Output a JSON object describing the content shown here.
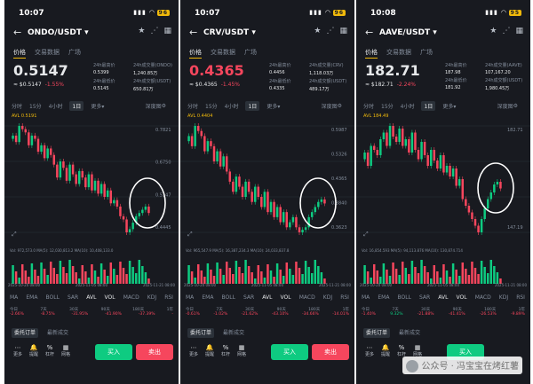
{
  "common": {
    "price_tabs": [
      "价格",
      "交易数据",
      "广场"
    ],
    "intervals": [
      "分时",
      "15分",
      "4小时",
      "1日",
      "更多▾",
      "深度图"
    ],
    "indicators": [
      "MA",
      "EMA",
      "BOLL",
      "SAR",
      "AVL",
      "VOL",
      "MACD",
      "KDJ",
      "RSI"
    ],
    "perf_labels": [
      "今日",
      "7天",
      "30天",
      "90天",
      "180天",
      "1年"
    ],
    "order_tabs": [
      "委托订单",
      "最新成交"
    ],
    "nav": [
      {
        "icon": "⋯",
        "label": "更多"
      },
      {
        "icon": "🔔",
        "label": "提醒"
      },
      {
        "icon": "%",
        "label": "杠杆"
      },
      {
        "icon": "▦",
        "label": "网格"
      }
    ],
    "buy_label": "买入",
    "sell_label": "卖出",
    "up_color": "#0ecb81",
    "down_color": "#f6465d",
    "accent": "#f0b90b"
  },
  "phones": [
    {
      "time": "10:07",
      "battery": "96",
      "pair": "ONDO/USDT",
      "price": "0.5147",
      "price_color": "#e6e8ea",
      "sub": "≈ $0.5147",
      "change": "-1.55%",
      "stats": [
        [
          "24h最高价",
          "24h成交量(ONDO)"
        ],
        [
          "0.5399",
          "1,240.85万"
        ],
        [
          "24h最低价",
          "24h成交额(USDT)"
        ],
        [
          "0.5145",
          "650.81万"
        ]
      ],
      "avl": "AVL 0.5191",
      "axis": [
        "0.7821",
        "0.6750",
        "0.5147",
        "0.4445"
      ],
      "vol": "Vol: 972,573.0    MA(5): 12,030,813.2    MA(10): 10,408,133.0",
      "dates": [
        "2025-10-20 08:00",
        "2025-11-05 08:00",
        "2025-11-21 08:00"
      ],
      "perf": [
        "-2.66%",
        "-8.75%",
        "-31.95%",
        "-41.90%",
        "-37.39%",
        "-"
      ],
      "series": [
        0.74,
        0.75,
        0.73,
        0.78,
        0.77,
        0.76,
        0.72,
        0.75,
        0.74,
        0.7,
        0.72,
        0.68,
        0.71,
        0.69,
        0.66,
        0.62,
        0.67,
        0.65,
        0.61,
        0.66,
        0.63,
        0.6,
        0.64,
        0.62,
        0.59,
        0.63,
        0.58,
        0.61,
        0.57,
        0.6,
        0.56,
        0.58,
        0.54,
        0.55,
        0.53,
        0.5,
        0.49,
        0.45,
        0.46,
        0.48,
        0.5,
        0.51,
        0.52,
        0.53,
        0.51
      ],
      "circle": [
        161,
        95
      ]
    },
    {
      "time": "10:07",
      "battery": "96",
      "pair": "CRV/USDT",
      "price": "0.4365",
      "price_color": "#f6465d",
      "sub": "≈ $0.4365",
      "change": "-1.45%",
      "stats": [
        [
          "24h最高价",
          "24h成交量(CRV)"
        ],
        [
          "0.4456",
          "1,118.03万"
        ],
        [
          "24h最低价",
          "24h成交额(USDT)"
        ],
        [
          "0.4335",
          "489.17万"
        ]
      ],
      "avl": "AVL 0.4404",
      "axis": [
        "0.5987",
        "0.5326",
        "0.4365",
        "0.3840",
        "0.3623"
      ],
      "vol": "Vol: 965,547.9    MA(5): 16,387,234.3    MA(10): 24,033,837.8",
      "dates": [
        "2025-10-20 08:00",
        "2025-11-05 08:00",
        "2025-11-21 08:00"
      ],
      "perf": [
        "-0.61%",
        "-1.02%",
        "-21.62%",
        "-43.10%",
        "-34.66%",
        "-14.01%"
      ],
      "series": [
        0.56,
        0.57,
        0.55,
        0.59,
        0.58,
        0.57,
        0.54,
        0.56,
        0.55,
        0.52,
        0.54,
        0.51,
        0.53,
        0.5,
        0.48,
        0.46,
        0.49,
        0.47,
        0.45,
        0.48,
        0.46,
        0.44,
        0.47,
        0.45,
        0.43,
        0.46,
        0.42,
        0.44,
        0.41,
        0.43,
        0.4,
        0.42,
        0.39,
        0.4,
        0.41,
        0.39,
        0.38,
        0.385,
        0.39,
        0.41,
        0.42,
        0.43,
        0.44,
        0.445,
        0.437
      ],
      "circle": [
        155,
        95
      ]
    },
    {
      "time": "10:08",
      "battery": "95",
      "pair": "AAVE/USDT",
      "price": "182.71",
      "price_color": "#e6e8ea",
      "sub": "≈ $182.71",
      "change": "-2.24%",
      "stats": [
        [
          "24h最高价",
          "24h成交量(AAVE)"
        ],
        [
          "187.98",
          "107,167.20"
        ],
        [
          "24h最低价",
          "24h成交额(USDT)"
        ],
        [
          "181.92",
          "1,980.45万"
        ]
      ],
      "avl": "AVL 184.49",
      "axis": [
        "182.71",
        "147.19"
      ],
      "vol": "Vol: 16,854.593    MA(5): 94,113.876    MA(10): 130,874.714",
      "dates": [
        "2025-10-20 08:00",
        "2025-11-05 08:00",
        "2025-11-21 08:00"
      ],
      "perf": [
        "-1.40%",
        "9.32%",
        "-21.88%",
        "-41.41%",
        "-26.53%",
        "-9.89%"
      ],
      "series": [
        205,
        210,
        200,
        215,
        212,
        208,
        220,
        225,
        215,
        230,
        222,
        218,
        228,
        215,
        220,
        210,
        225,
        212,
        205,
        218,
        208,
        200,
        212,
        204,
        198,
        208,
        195,
        200,
        192,
        198,
        185,
        190,
        175,
        170,
        165,
        160,
        155,
        150,
        160,
        168,
        175,
        180,
        186,
        188,
        183
      ],
      "circle": [
        157,
        78
      ]
    }
  ]
}
